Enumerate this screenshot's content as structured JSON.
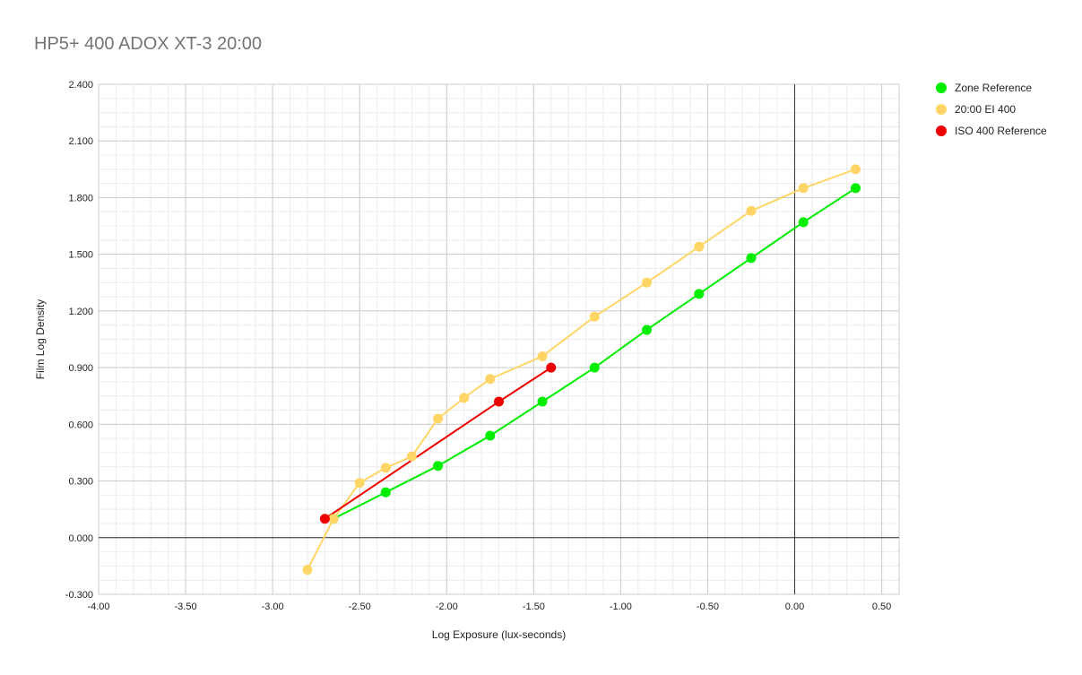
{
  "chart_data": {
    "type": "line",
    "title": "HP5+ 400 ADOX XT-3 20:00",
    "xlabel": "Log Exposure (lux-seconds)",
    "ylabel": "Film Log Density",
    "xlim": [
      -4.0,
      0.6
    ],
    "ylim": [
      -0.3,
      2.4
    ],
    "x_ticks": [
      "-4.00",
      "-3.50",
      "-3.00",
      "-2.50",
      "-2.00",
      "-1.50",
      "-1.00",
      "-0.50",
      "0.00",
      "0.50"
    ],
    "y_ticks": [
      "2.400",
      "2.100",
      "1.800",
      "1.500",
      "1.200",
      "0.900",
      "0.600",
      "0.300",
      "0.000",
      "-0.300"
    ],
    "grid": true,
    "legend_position": "right",
    "series": [
      {
        "name": "Zone Reference",
        "color": "#00ee00",
        "points": [
          [
            -2.65,
            0.1
          ],
          [
            -2.35,
            0.24
          ],
          [
            -2.05,
            0.38
          ],
          [
            -1.75,
            0.54
          ],
          [
            -1.45,
            0.72
          ],
          [
            -1.15,
            0.9
          ],
          [
            -0.85,
            1.1
          ],
          [
            -0.55,
            1.29
          ],
          [
            -0.25,
            1.48
          ],
          [
            0.05,
            1.67
          ],
          [
            0.35,
            1.85
          ]
        ]
      },
      {
        "name": "20:00 EI 400",
        "color": "#ffd666",
        "points": [
          [
            -2.8,
            -0.17
          ],
          [
            -2.65,
            0.1
          ],
          [
            -2.5,
            0.29
          ],
          [
            -2.35,
            0.37
          ],
          [
            -2.2,
            0.43
          ],
          [
            -2.05,
            0.63
          ],
          [
            -1.9,
            0.74
          ],
          [
            -1.75,
            0.84
          ],
          [
            -1.45,
            0.96
          ],
          [
            -1.15,
            1.17
          ],
          [
            -0.85,
            1.35
          ],
          [
            -0.55,
            1.54
          ],
          [
            -0.25,
            1.73
          ],
          [
            0.05,
            1.85
          ],
          [
            0.35,
            1.95
          ]
        ]
      },
      {
        "name": "ISO 400 Reference",
        "color": "#ee0000",
        "points": [
          [
            -2.7,
            0.1
          ],
          [
            -1.7,
            0.72
          ],
          [
            -1.4,
            0.9
          ]
        ]
      }
    ]
  }
}
